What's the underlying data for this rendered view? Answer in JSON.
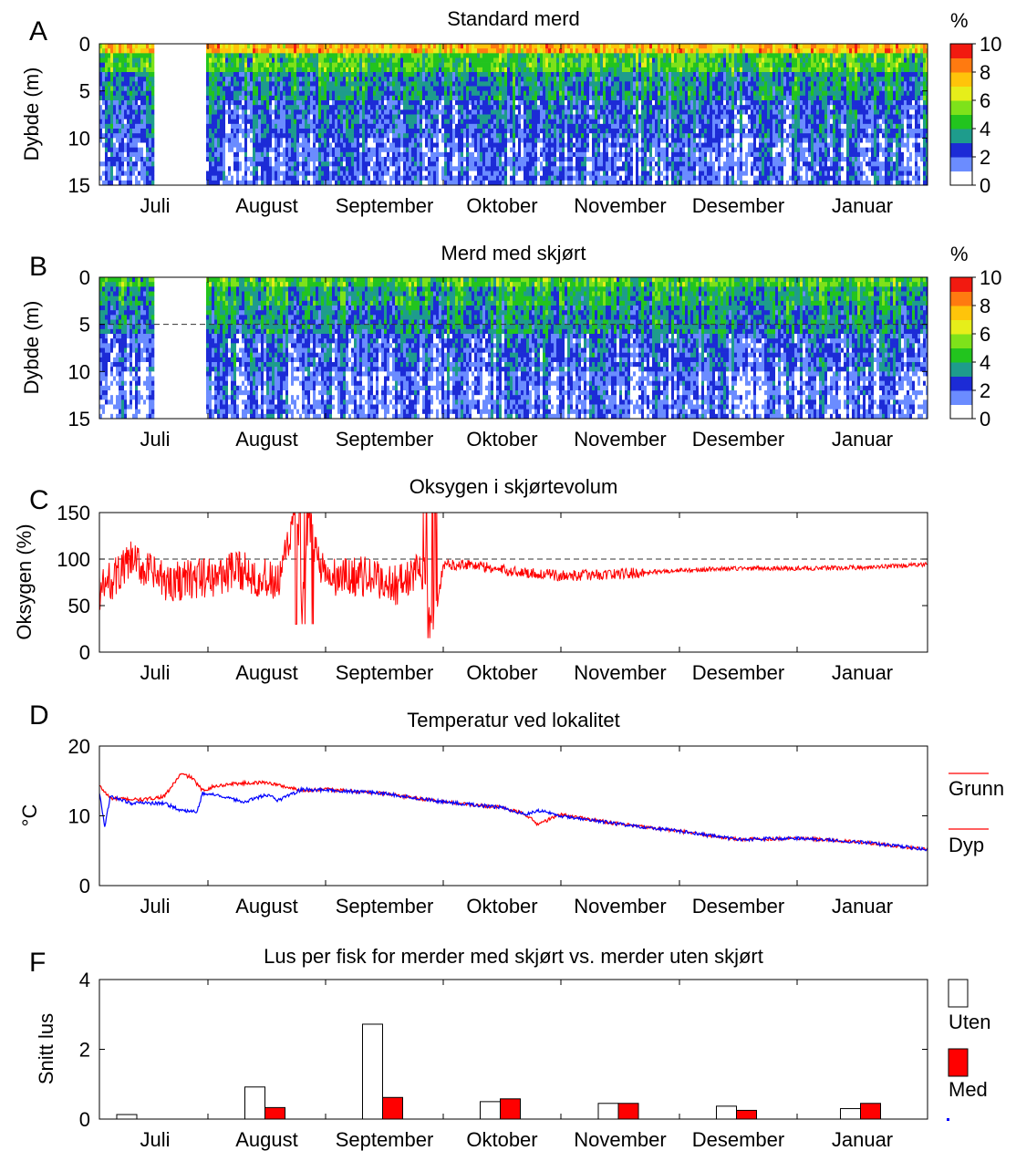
{
  "months": [
    "Juli",
    "August",
    "September",
    "Oktober",
    "November",
    "Desember",
    "Januar"
  ],
  "colorbar": {
    "unit": "%",
    "ticks": [
      "10",
      "8",
      "6",
      "4",
      "2",
      "0"
    ],
    "colors": [
      "#ffffff",
      "#6b8cff",
      "#1c2bd6",
      "#1e9c8c",
      "#22c41e",
      "#7ee21a",
      "#e6ee1a",
      "#ffc40a",
      "#ff7a10",
      "#f21a10"
    ]
  },
  "chart_data": [
    {
      "panel": "A",
      "type": "heatmap",
      "title": "Standard merd",
      "ylabel": "Dybde (m)",
      "ylim": [
        15,
        0
      ],
      "yticks": [
        "0",
        "5",
        "10",
        "15"
      ],
      "value_range": [
        0,
        10
      ],
      "data_gap": "after Juli (no data)",
      "depth_profile_percent": {
        "0-1m": 7.5,
        "1-3m": 4.6,
        "3-6m": 3.2,
        "6-10m": 2.4,
        "10-15m": 1.8
      }
    },
    {
      "panel": "B",
      "type": "heatmap",
      "title": "Merd med skjørt",
      "ylabel": "Dybde (m)",
      "ylim": [
        15,
        0
      ],
      "yticks": [
        "0",
        "5",
        "10",
        "15"
      ],
      "value_range": [
        0,
        10
      ],
      "skirt_depth_line": 5,
      "data_gap": "after Juli (no data)",
      "depth_profile_percent": {
        "0-1m": 4.8,
        "1-3m": 3.8,
        "3-6m": 3.2,
        "6-10m": 2.2,
        "10-15m": 1.6
      }
    },
    {
      "panel": "C",
      "type": "line",
      "title": "Oksygen i skjørtevolum",
      "ylabel": "Oksygen (%)",
      "ylim": [
        0,
        150
      ],
      "yticks": [
        "0",
        "50",
        "100",
        "150"
      ],
      "reference_line": 100,
      "series": [
        {
          "color": "#ff0000",
          "x": [
            0.0,
            0.3,
            0.6,
            1.0,
            1.3,
            1.6,
            1.75,
            1.8,
            1.85,
            2.0,
            2.3,
            2.6,
            2.85,
            2.9,
            3.0,
            3.2,
            3.5,
            4.0,
            4.5,
            5.0,
            5.5,
            6.0,
            6.5,
            7.0
          ],
          "values": [
            65,
            98,
            75,
            80,
            88,
            72,
            150,
            40,
            140,
            78,
            82,
            72,
            90,
            15,
            93,
            95,
            88,
            82,
            84,
            88,
            90,
            90,
            91,
            94
          ]
        }
      ]
    },
    {
      "panel": "D",
      "type": "line",
      "title": "Temperatur ved lokalitet",
      "ylabel": "°C",
      "ylim": [
        0,
        20
      ],
      "yticks": [
        "0",
        "10",
        "20"
      ],
      "series": [
        {
          "name": "Grunn",
          "color": "#ff0000",
          "x": [
            0.0,
            0.1,
            0.4,
            0.6,
            0.75,
            0.85,
            0.95,
            1.05,
            1.2,
            1.5,
            1.8,
            2.0,
            2.5,
            3.0,
            3.5,
            3.7,
            3.8,
            4.0,
            4.5,
            5.0,
            5.5,
            6.0,
            6.5,
            7.0
          ],
          "values": [
            14.3,
            12.5,
            12.3,
            12.8,
            16.0,
            15.5,
            13.6,
            14.2,
            14.6,
            14.8,
            13.6,
            13.8,
            13.2,
            12.0,
            11.2,
            10.2,
            8.8,
            10.2,
            8.8,
            7.8,
            6.6,
            6.8,
            6.2,
            5.2
          ]
        },
        {
          "name": "Dyp",
          "color": "#0000ff",
          "x": [
            0.0,
            0.05,
            0.1,
            0.3,
            0.6,
            0.75,
            0.9,
            0.95,
            1.05,
            1.3,
            1.5,
            1.6,
            1.8,
            2.0,
            2.5,
            3.0,
            3.5,
            3.7,
            3.8,
            4.0,
            4.5,
            5.0,
            5.5,
            6.0,
            6.5,
            7.0
          ],
          "values": [
            13.2,
            8.5,
            12.8,
            11.8,
            11.8,
            10.8,
            10.6,
            13.2,
            13.0,
            12.0,
            13.0,
            12.2,
            13.8,
            13.7,
            13.2,
            12.0,
            11.2,
            10.2,
            10.8,
            10.0,
            8.8,
            7.8,
            6.6,
            6.8,
            6.2,
            5.2
          ]
        }
      ],
      "legend": "right"
    },
    {
      "panel": "F",
      "type": "bar",
      "title": "Lus per fisk for merder med skjørt vs. merder uten skjørt",
      "ylabel": "Snitt lus",
      "ylim": [
        0,
        4
      ],
      "yticks": [
        "0",
        "2",
        "4"
      ],
      "categories": [
        "Juli",
        "August",
        "September",
        "Oktober",
        "November",
        "Desember",
        "Januar"
      ],
      "series": [
        {
          "name": "Uten",
          "color": "#ffffff",
          "values": [
            0.13,
            0.92,
            2.72,
            0.5,
            0.45,
            0.37,
            0.3
          ]
        },
        {
          "name": "Med",
          "color": "#ff0000",
          "values": [
            null,
            0.33,
            0.62,
            0.58,
            0.45,
            0.25,
            0.45
          ]
        }
      ],
      "legend": "right"
    }
  ],
  "panel_letters": [
    "A",
    "B",
    "C",
    "D",
    "F"
  ]
}
